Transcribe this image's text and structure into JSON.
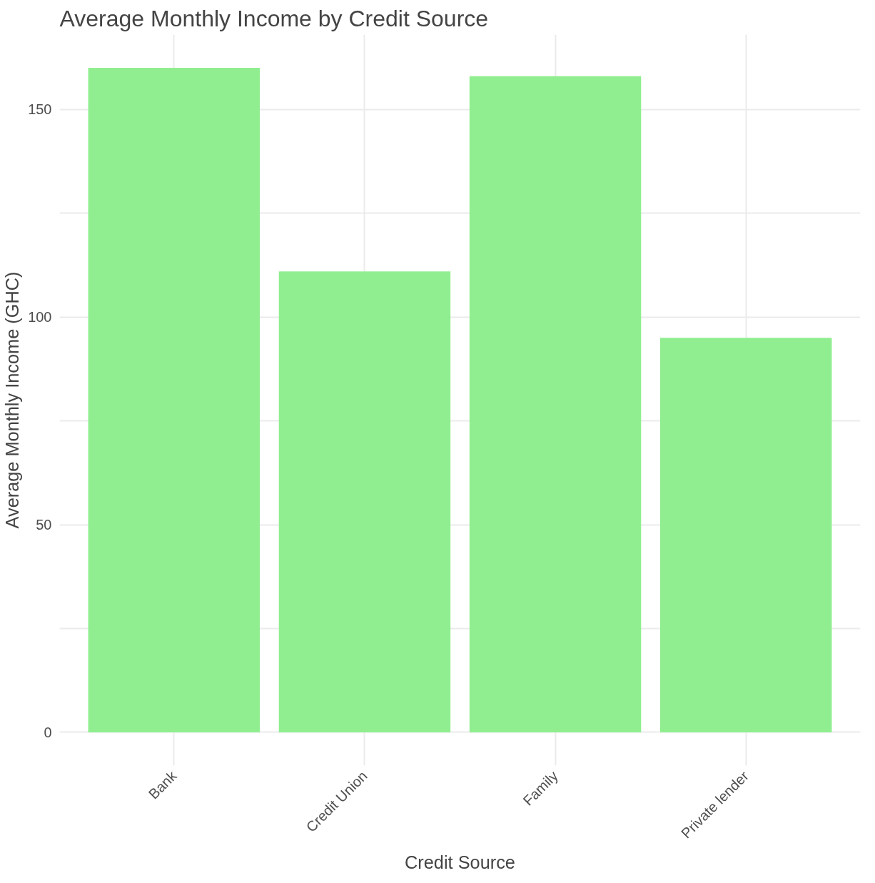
{
  "chart_data": {
    "type": "bar",
    "title": "Average Monthly Income by Credit Source",
    "xlabel": "Credit Source",
    "ylabel": "Average Monthly Income (GHC)",
    "categories": [
      "Bank",
      "Credit Union",
      "Family",
      "Private lender"
    ],
    "values": [
      160,
      111,
      158,
      95
    ],
    "color": "#90ee90",
    "ylim": [
      -8,
      168
    ],
    "yticks": [
      0,
      {
        "value": 25,
        "label": null
      },
      50,
      {
        "value": 75,
        "label": null
      },
      100,
      {
        "value": 125,
        "label": null
      },
      150
    ],
    "grid": true
  }
}
